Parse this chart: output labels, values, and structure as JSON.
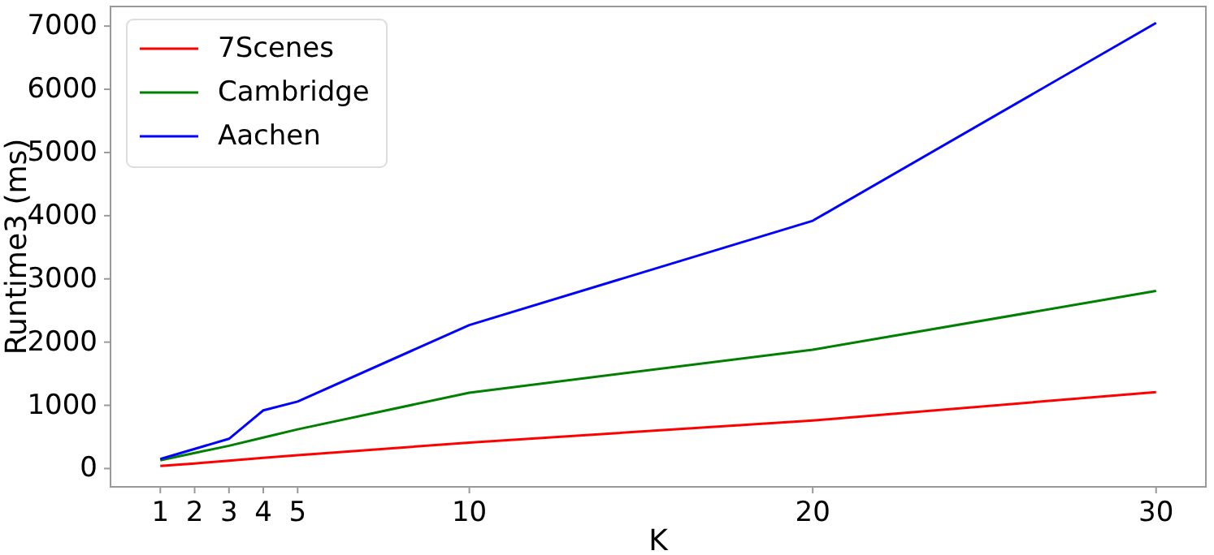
{
  "chart_data": {
    "type": "line",
    "xlabel": "K",
    "ylabel": "Runtime3 (ms)",
    "x": [
      1,
      2,
      3,
      4,
      5,
      10,
      20,
      30
    ],
    "series": [
      {
        "name": "7Scenes",
        "color": "#ff0000",
        "values": [
          40,
          80,
          125,
          170,
          210,
          410,
          760,
          1210
        ]
      },
      {
        "name": "Cambridge",
        "color": "#008000",
        "values": [
          130,
          245,
          360,
          490,
          620,
          1200,
          1880,
          2810
        ]
      },
      {
        "name": "Aachen",
        "color": "#0000ff",
        "values": [
          150,
          310,
          470,
          920,
          1060,
          2270,
          3920,
          7050
        ]
      }
    ],
    "xlim": [
      -0.45,
      31.45
    ],
    "ylim": [
      -290,
      7310
    ],
    "xticks": [
      1,
      2,
      3,
      4,
      5,
      10,
      20,
      30
    ],
    "yticks": [
      0,
      1000,
      2000,
      3000,
      4000,
      5000,
      6000,
      7000
    ],
    "grid": false,
    "legend": "top left",
    "marker": "none",
    "line_style": "solid"
  }
}
